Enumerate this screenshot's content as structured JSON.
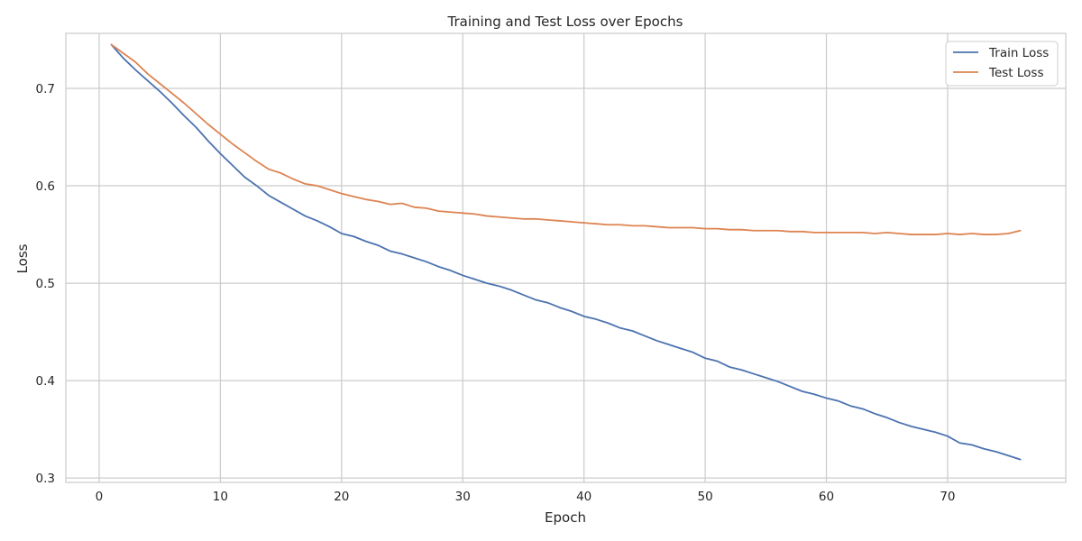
{
  "chart_data": {
    "type": "line",
    "title": "Training and Test Loss over Epochs",
    "xlabel": "Epoch",
    "ylabel": "Loss",
    "xlim": [
      -2.75,
      79.75
    ],
    "ylim": [
      0.2955,
      0.7565
    ],
    "xticks": [
      0,
      10,
      20,
      30,
      40,
      50,
      60,
      70
    ],
    "yticks": [
      0.3,
      0.4,
      0.5,
      0.6,
      0.7
    ],
    "ytick_labels": [
      "0.3",
      "0.4",
      "0.5",
      "0.6",
      "0.7"
    ],
    "grid": true,
    "legend_position": "top-right",
    "x": [
      1,
      2,
      3,
      4,
      5,
      6,
      7,
      8,
      9,
      10,
      11,
      12,
      13,
      14,
      15,
      16,
      17,
      18,
      19,
      20,
      21,
      22,
      23,
      24,
      25,
      26,
      27,
      28,
      29,
      30,
      31,
      32,
      33,
      34,
      35,
      36,
      37,
      38,
      39,
      40,
      41,
      42,
      43,
      44,
      45,
      46,
      47,
      48,
      49,
      50,
      51,
      52,
      53,
      54,
      55,
      56,
      57,
      58,
      59,
      60,
      61,
      62,
      63,
      64,
      65,
      66,
      67,
      68,
      69,
      70,
      71,
      72,
      73,
      74,
      75,
      76
    ],
    "series": [
      {
        "name": "Train Loss",
        "color": "#4c72b0",
        "values": [
          0.745,
          0.731,
          0.719,
          0.708,
          0.697,
          0.685,
          0.672,
          0.66,
          0.646,
          0.633,
          0.621,
          0.609,
          0.6,
          0.59,
          0.583,
          0.576,
          0.569,
          0.564,
          0.558,
          0.551,
          0.548,
          0.543,
          0.539,
          0.533,
          0.53,
          0.526,
          0.522,
          0.517,
          0.513,
          0.508,
          0.504,
          0.5,
          0.497,
          0.493,
          0.488,
          0.483,
          0.48,
          0.475,
          0.471,
          0.466,
          0.463,
          0.459,
          0.454,
          0.451,
          0.446,
          0.441,
          0.437,
          0.433,
          0.429,
          0.423,
          0.42,
          0.414,
          0.411,
          0.407,
          0.403,
          0.399,
          0.394,
          0.389,
          0.386,
          0.382,
          0.379,
          0.374,
          0.371,
          0.366,
          0.362,
          0.357,
          0.353,
          0.35,
          0.347,
          0.343,
          0.336,
          0.334,
          0.33,
          0.327,
          0.323,
          0.319
        ]
      },
      {
        "name": "Test Loss",
        "color": "#dd8452",
        "values": [
          0.745,
          0.736,
          0.727,
          0.715,
          0.705,
          0.695,
          0.685,
          0.674,
          0.663,
          0.653,
          0.643,
          0.634,
          0.625,
          0.617,
          0.613,
          0.607,
          0.602,
          0.6,
          0.596,
          0.592,
          0.589,
          0.586,
          0.584,
          0.581,
          0.582,
          0.578,
          0.577,
          0.574,
          0.573,
          0.572,
          0.571,
          0.569,
          0.568,
          0.567,
          0.566,
          0.566,
          0.565,
          0.564,
          0.563,
          0.562,
          0.561,
          0.56,
          0.56,
          0.559,
          0.559,
          0.558,
          0.557,
          0.557,
          0.557,
          0.556,
          0.556,
          0.555,
          0.555,
          0.554,
          0.554,
          0.554,
          0.553,
          0.553,
          0.552,
          0.552,
          0.552,
          0.552,
          0.552,
          0.551,
          0.552,
          0.551,
          0.55,
          0.55,
          0.55,
          0.551,
          0.55,
          0.551,
          0.55,
          0.55,
          0.551,
          0.554
        ]
      }
    ]
  }
}
